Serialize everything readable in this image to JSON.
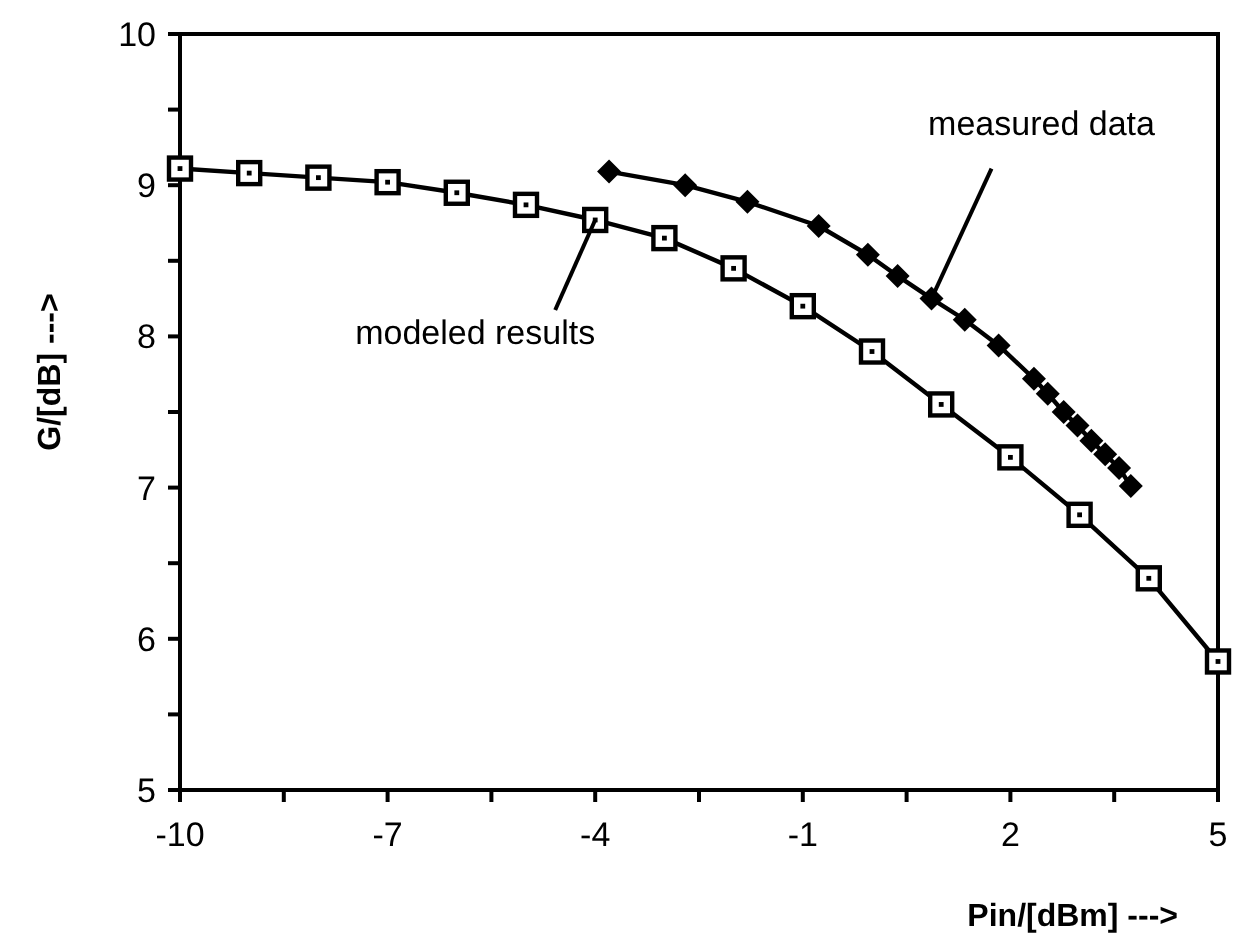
{
  "chart_data": {
    "type": "line",
    "xlabel": "Pin/[dBm] --->",
    "ylabel": "G/[dB] --->",
    "xlim": [
      -10,
      5
    ],
    "xticks": [
      {
        "value": -10,
        "label": "-10"
      },
      {
        "value": -8.5,
        "label": null
      },
      {
        "value": -7,
        "label": "-7"
      },
      {
        "value": -5.5,
        "label": null
      },
      {
        "value": -4,
        "label": "-4"
      },
      {
        "value": -2.5,
        "label": null
      },
      {
        "value": -1,
        "label": "-1"
      },
      {
        "value": 0.5,
        "label": null
      },
      {
        "value": 2,
        "label": "2"
      },
      {
        "value": 3.5,
        "label": null
      },
      {
        "value": 5,
        "label": "5"
      }
    ],
    "ylim": [
      5,
      10
    ],
    "yticks": [
      5,
      {
        "value": 5.5,
        "label": null
      },
      6,
      {
        "value": 6.5,
        "label": null
      },
      7,
      {
        "value": 7.5,
        "label": null
      },
      8,
      {
        "value": 8.5,
        "label": null
      },
      9,
      {
        "value": 9.5,
        "label": null
      },
      10
    ],
    "grid": false,
    "series": [
      {
        "color": "#000000",
        "marker": "square",
        "x": [
          -10,
          -9,
          -8,
          -7,
          -6,
          -5,
          -4,
          -3,
          -2,
          -1,
          0,
          1,
          2,
          3,
          4,
          5
        ],
        "values": [
          9.11,
          9.08,
          9.05,
          9.02,
          8.95,
          8.87,
          8.77,
          8.65,
          8.45,
          8.2,
          7.9,
          7.55,
          7.2,
          6.82,
          6.4,
          5.85
        ]
      },
      {
        "color": "#000000",
        "marker": "diamond",
        "x": [
          -3.8,
          -2.7,
          -1.8,
          -0.77,
          -0.06,
          0.37,
          0.86,
          1.34,
          1.83,
          2.34,
          2.54,
          2.77,
          2.97,
          3.17,
          3.37,
          3.57,
          3.74
        ],
        "values": [
          9.09,
          9.0,
          8.89,
          8.73,
          8.54,
          8.4,
          8.25,
          8.11,
          7.94,
          7.72,
          7.62,
          7.5,
          7.41,
          7.31,
          7.22,
          7.13,
          7.01
        ]
      }
    ],
    "annotations": [
      {
        "text": "measured data",
        "x": 0.86,
        "y": 8.25
      },
      {
        "text": "modeled results",
        "x": -4,
        "y": 8.77
      }
    ]
  }
}
